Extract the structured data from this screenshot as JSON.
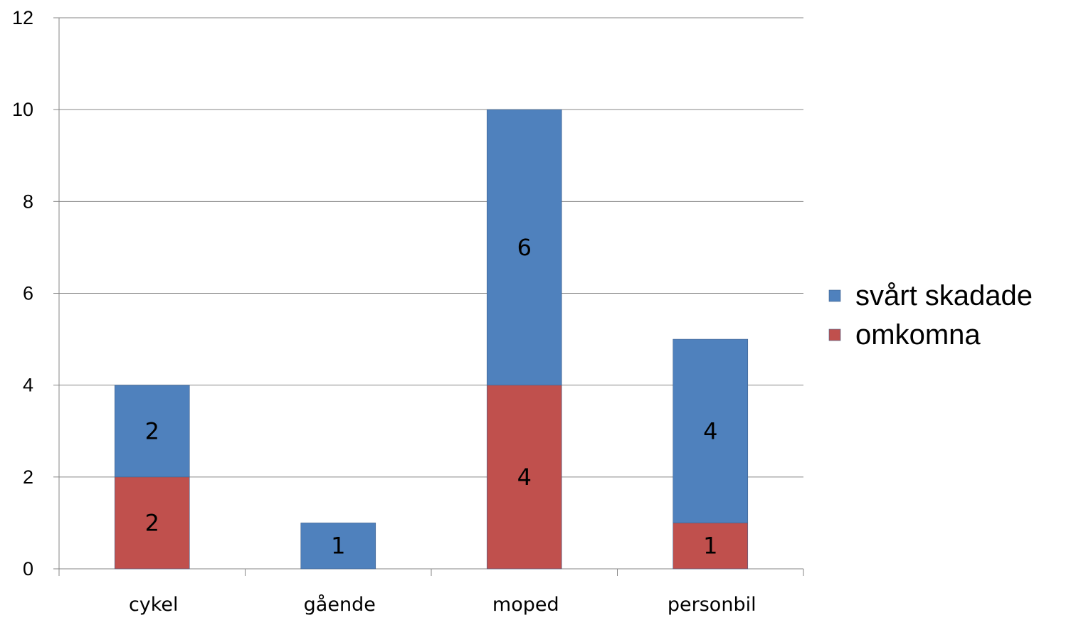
{
  "chart_data": {
    "type": "bar",
    "stacked": true,
    "categories": [
      "cykel",
      "gående",
      "moped",
      "personbil"
    ],
    "series": [
      {
        "name": "omkomna",
        "values": [
          2,
          0,
          4,
          1
        ],
        "labels": [
          "2",
          "",
          "4",
          "1"
        ],
        "color": "#C0504D"
      },
      {
        "name": "svårt skadade",
        "values": [
          2,
          1,
          6,
          4
        ],
        "labels": [
          "2",
          "1",
          "6",
          "4"
        ],
        "color": "#4F81BD"
      }
    ],
    "legend_order": [
      "svårt skadade",
      "omkomna"
    ],
    "ylim": [
      0,
      12
    ],
    "yticks": [
      "0",
      "2",
      "4",
      "6",
      "8",
      "10",
      "12"
    ],
    "grid": true,
    "legend_position": "right",
    "title": "",
    "xlabel": "",
    "ylabel": ""
  }
}
